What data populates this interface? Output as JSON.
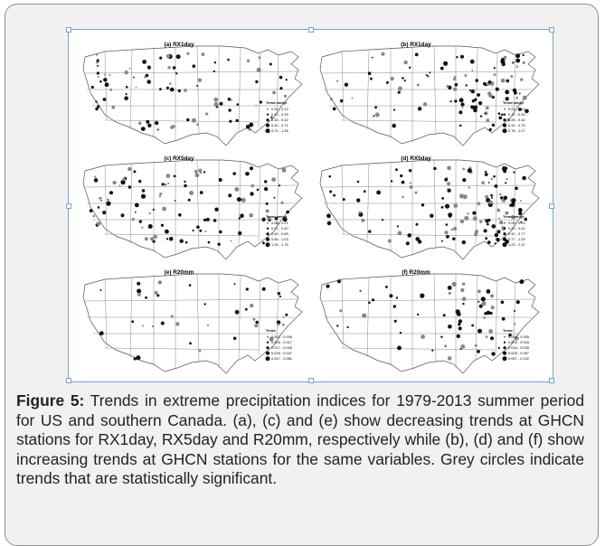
{
  "figure": {
    "panels": [
      {
        "id": "a",
        "title": "(a) RX1day",
        "legend_title": "Trend mm/yr",
        "legend_items": [
          "0.01 - 0.13",
          "0.13 - 0.25",
          "0.25 - 0.42",
          "0.42 - 0.71",
          "0.71 - 1.28"
        ]
      },
      {
        "id": "b",
        "title": "(b) RX1day",
        "legend_title": "Trend mm/yr",
        "legend_items": [
          "0.01 - 0.12",
          "0.12 - 0.25",
          "0.25 - 0.44",
          "0.44 - 0.76",
          "0.76 - 1.27"
        ]
      },
      {
        "id": "c",
        "title": "(c) RX5day",
        "legend_title": "Trend mm/yr",
        "legend_items": [
          "0.00 - 0.21",
          "0.21 - 0.40",
          "0.40 - 0.65",
          "0.65 - 1.03",
          "1.03 - 1.75"
        ]
      },
      {
        "id": "d",
        "title": "(d) RX5day",
        "legend_title": "Trend mm/yr",
        "legend_items": [
          "0.00 - 0.20",
          "0.20 - 0.42",
          "0.42 - 0.77",
          "0.77 - 1.29",
          "1.29 - 2.37"
        ]
      },
      {
        "id": "e",
        "title": "(e) R20mm",
        "legend_title": "Trend",
        "legend_items": [
          "0.002 - 0.006",
          "0.006 - 0.017",
          "0.017 - 0.028",
          "0.028 - 0.047",
          "0.047 - 0.081"
        ]
      },
      {
        "id": "f",
        "title": "(f) R20mm",
        "legend_title": "Trend",
        "legend_items": [
          "0.001 - 0.005",
          "0.005 - 0.016",
          "0.016 - 0.028",
          "0.028 - 0.057",
          "0.057 - 0.102"
        ]
      }
    ]
  },
  "caption": {
    "label": "Figure 5:",
    "text": " Trends in extreme precipitation indices for 1979-2013 summer period for US and southern Canada. (a), (c) and (e) show decreasing trends at GHCN stations for RX1day, RX5day and R20mm, respectively while (b), (d) and (f) show increasing trends at GHCN stations for the same variables. Grey circles indicate trends that are statistically significant."
  }
}
